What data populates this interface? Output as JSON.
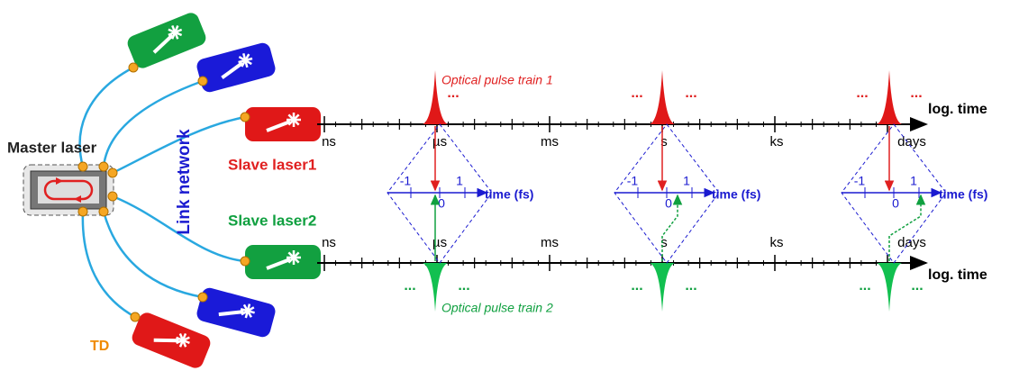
{
  "labels": {
    "master": "Master laser",
    "link": "Link network",
    "slave1": "Slave laser1",
    "slave2": "Slave laser2",
    "td": "TD"
  },
  "pulse_trains": [
    "Optical pulse train 1",
    "Optical pulse train 2"
  ],
  "time_units": [
    "ns",
    "µs",
    "ms",
    "s",
    "ks",
    "days"
  ],
  "axis_label": "log. time",
  "inset": {
    "axis_label": "time (fs)",
    "ticks": [
      "-1",
      "0",
      "1"
    ]
  },
  "ellipsis": "..."
}
